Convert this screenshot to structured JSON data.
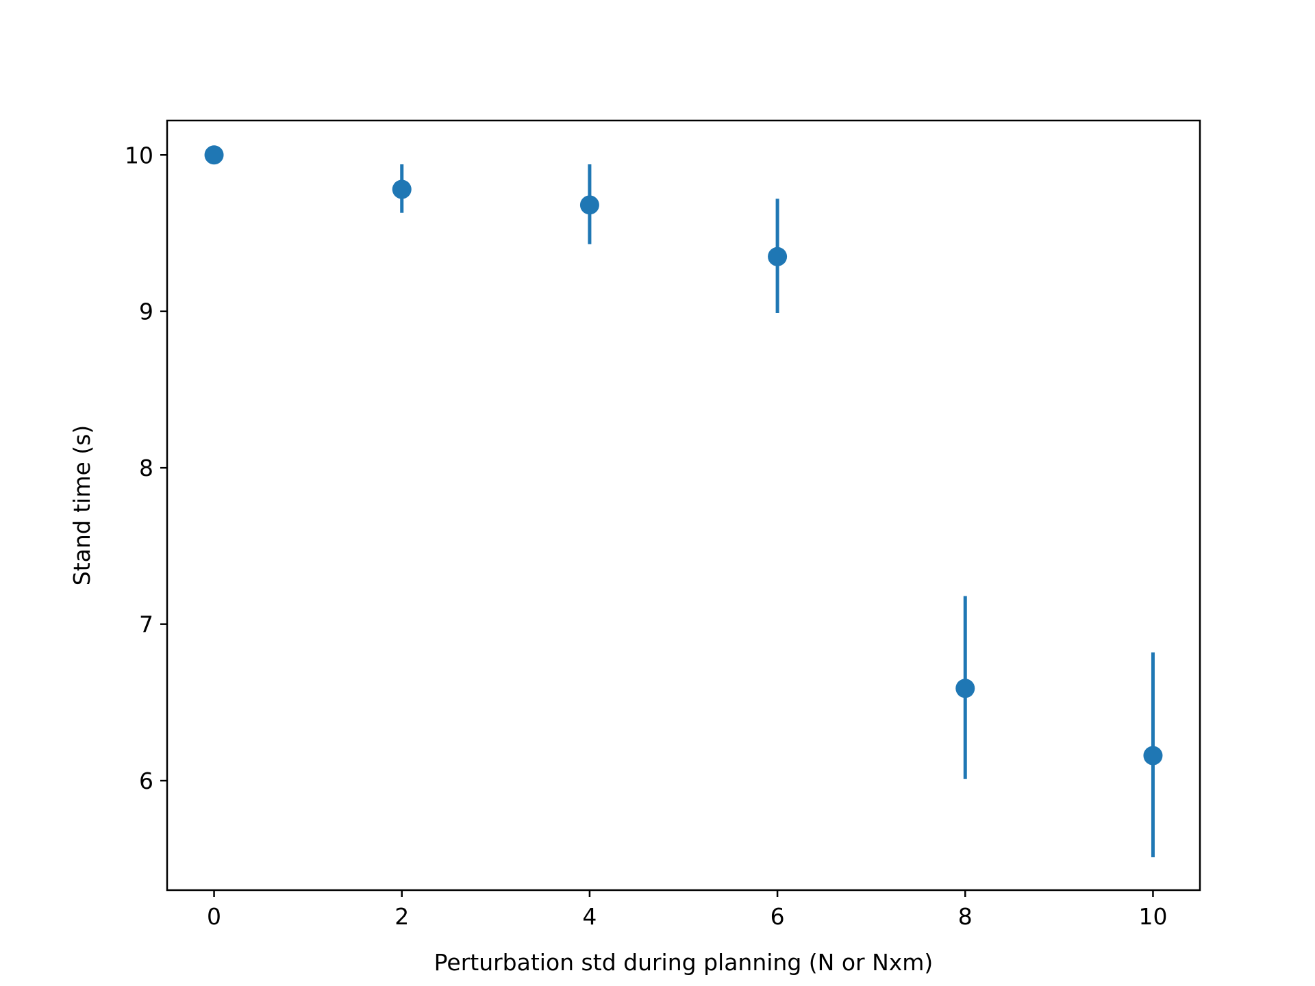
{
  "chart_data": {
    "type": "scatter",
    "title": "",
    "xlabel": "Perturbation std during planning (N or Nxm)",
    "ylabel": "Stand time (s)",
    "xlim": [
      -0.5,
      10.5
    ],
    "ylim": [
      5.3,
      10.22
    ],
    "xticks": [
      0,
      2,
      4,
      6,
      8,
      10
    ],
    "yticks": [
      6,
      7,
      8,
      9,
      10
    ],
    "grid": false,
    "color": "#1f77b4",
    "series": [
      {
        "points": [
          {
            "x": 0,
            "y": 10.0,
            "yerr_low": 10.0,
            "yerr_high": 10.0
          },
          {
            "x": 2,
            "y": 9.78,
            "yerr_low": 9.63,
            "yerr_high": 9.94
          },
          {
            "x": 4,
            "y": 9.68,
            "yerr_low": 9.43,
            "yerr_high": 9.94
          },
          {
            "x": 6,
            "y": 9.35,
            "yerr_low": 8.99,
            "yerr_high": 9.72
          },
          {
            "x": 8,
            "y": 6.59,
            "yerr_low": 6.01,
            "yerr_high": 7.18
          },
          {
            "x": 10,
            "y": 6.16,
            "yerr_low": 5.51,
            "yerr_high": 6.82
          }
        ]
      }
    ]
  }
}
